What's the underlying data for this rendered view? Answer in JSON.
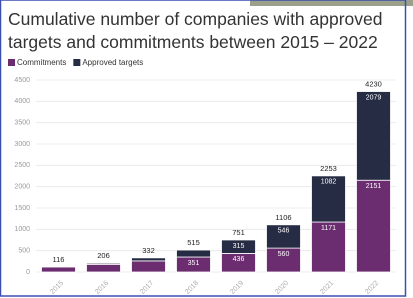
{
  "chart_data": {
    "type": "stacked-bar",
    "title": "Cumulative number of companies with approved targets and commitments between 2015 – 2022",
    "categories": [
      "2015",
      "2016",
      "2017",
      "2018",
      "2019",
      "2020",
      "2021",
      "2022"
    ],
    "series": [
      {
        "name": "Commitments",
        "color": "#6b2c70",
        "values": [
          116,
          180,
          260,
          351,
          436,
          560,
          1171,
          2151
        ]
      },
      {
        "name": "Approved targets",
        "color": "#262c44",
        "values": [
          0,
          26,
          72,
          164,
          315,
          546,
          1082,
          2079
        ]
      }
    ],
    "totals": [
      116,
      206,
      332,
      515,
      751,
      1106,
      2253,
      4230
    ],
    "ylim": [
      0,
      4500
    ],
    "yticks": [
      0,
      500,
      1000,
      1500,
      2000,
      2500,
      3000,
      3500,
      4000,
      4500
    ],
    "grid": true
  }
}
